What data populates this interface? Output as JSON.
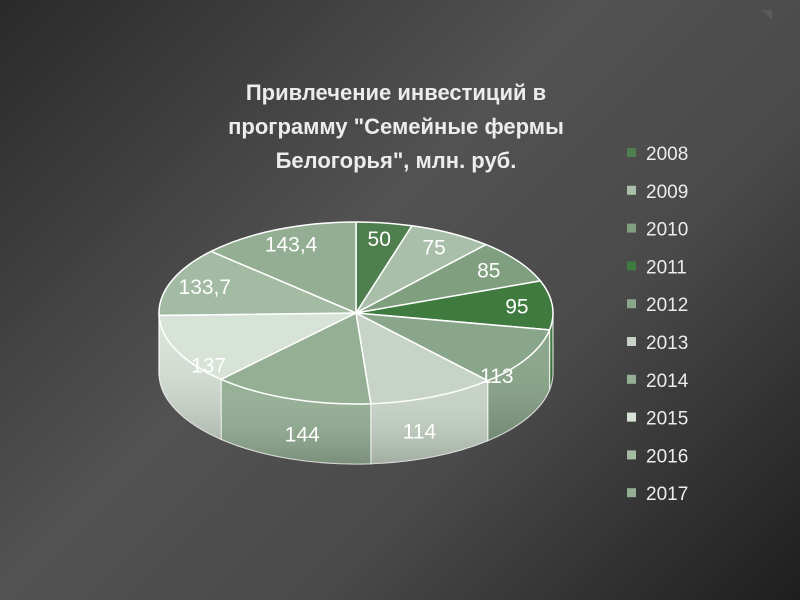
{
  "chart_data": {
    "type": "pie",
    "title_lines": [
      "Привлечение инвестиций в",
      "программу \"Семейные фермы",
      "Белогорья\", млн. руб."
    ],
    "categories": [
      "2008",
      "2009",
      "2010",
      "2011",
      "2012",
      "2013",
      "2014",
      "2015",
      "2016",
      "2017"
    ],
    "values": [
      50,
      75,
      85,
      95,
      113,
      114,
      144,
      137,
      133.7,
      143.4
    ],
    "data_labels": [
      "50",
      "75",
      "85",
      "95",
      "113",
      "114",
      "144",
      "137",
      "133,7",
      "143,4"
    ],
    "colors": [
      "#4f7f4f",
      "#a9bfa9",
      "#7f9f7f",
      "#3f7a3f",
      "#8aa68a",
      "#c6d3c6",
      "#95af95",
      "#d8e3d8",
      "#a2bba2",
      "#94ae94"
    ],
    "legend_position": "right",
    "style": "3d-pie"
  }
}
